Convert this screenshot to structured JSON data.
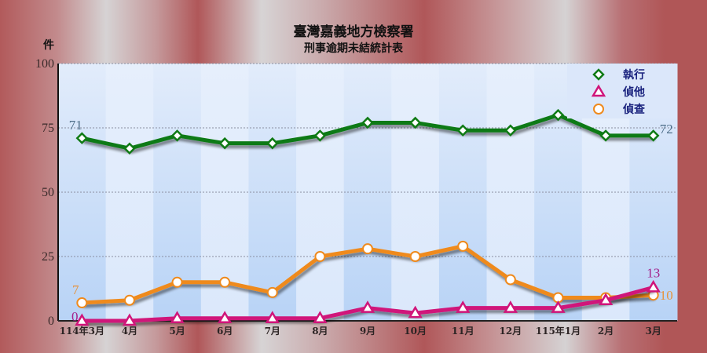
{
  "chart_data": {
    "type": "line",
    "title": "臺灣嘉義地方檢察署",
    "subtitle": "刑事逾期未結統計表",
    "xlabel": "",
    "ylabel": "件",
    "ylim": [
      0,
      100
    ],
    "yticks": [
      0,
      25,
      50,
      75,
      100
    ],
    "grid": "horizontal dotted",
    "legend_position": "top-right inside",
    "categories": [
      "114年3月",
      "4月",
      "5月",
      "6月",
      "7月",
      "8月",
      "9月",
      "10月",
      "11月",
      "12月",
      "115年1月",
      "2月",
      "3月"
    ],
    "series": [
      {
        "name": "執行",
        "color": "#0f7a14",
        "marker": "diamond",
        "values": [
          71,
          67,
          72,
          69,
          69,
          72,
          77,
          77,
          74,
          74,
          80,
          72,
          72
        ],
        "labels": {
          "first": "71",
          "last": "72"
        },
        "label_color": "#4f6f8a"
      },
      {
        "name": "偵他",
        "color": "#d0157a",
        "marker": "triangle",
        "values": [
          0,
          0,
          1,
          1,
          1,
          1,
          5,
          3,
          5,
          5,
          5,
          8,
          13
        ],
        "labels": {
          "first": "0",
          "last": "13"
        },
        "label_color": "#a3208a"
      },
      {
        "name": "偵查",
        "color": "#ef8a1c",
        "marker": "circle",
        "values": [
          7,
          8,
          15,
          15,
          11,
          25,
          28,
          25,
          29,
          16,
          9,
          9,
          10
        ],
        "labels": {
          "first": "7",
          "last": "10"
        },
        "label_color": "#e6923a"
      }
    ]
  },
  "colors": {
    "band_dark": "#bcd6f7",
    "band_light": "#dfeafb",
    "axis": "#111111"
  }
}
